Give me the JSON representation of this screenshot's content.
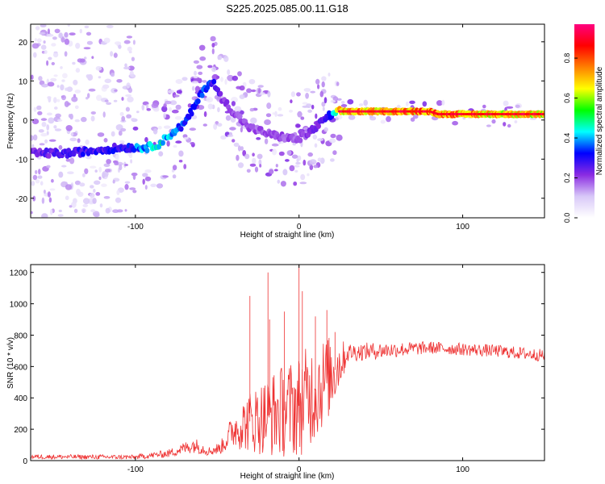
{
  "title": "S225.2025.085.00.11.G18",
  "colors": {
    "line": "#ee3333",
    "frame": "#000000",
    "colorbar_stops": [
      "#ffffff",
      "#d8c8f8",
      "#8a2be2",
      "#0000ff",
      "#00ffff",
      "#00ff00",
      "#ffff00",
      "#ff8000",
      "#ff0000",
      "#ff0080"
    ]
  },
  "chart_data": [
    {
      "type": "heatmap",
      "title": "S225.2025.085.00.11.G18",
      "xlabel": "Height of straight line (km)",
      "ylabel": "Frequency (Hz)",
      "xlim": [
        -164,
        150
      ],
      "ylim": [
        -25,
        24.5
      ],
      "xticks": [
        -100,
        0,
        100
      ],
      "yticks": [
        -20,
        -10,
        0,
        10,
        20
      ],
      "colorbar": {
        "label": "Normalized spectral amplitude",
        "range": [
          0,
          0.97
        ],
        "ticks": [
          "0.0",
          "0.2",
          "0.4",
          "0.6",
          "0.8"
        ],
        "tick_values": [
          0,
          0.2,
          0.4,
          0.6,
          0.8
        ]
      },
      "ridge": [
        {
          "x": -164,
          "y": -8.5,
          "a": 0.25
        },
        {
          "x": -140,
          "y": -8.5,
          "a": 0.3
        },
        {
          "x": -120,
          "y": -7.5,
          "a": 0.3
        },
        {
          "x": -105,
          "y": -7.0,
          "a": 0.32
        },
        {
          "x": -92,
          "y": -7.0,
          "a": 0.45
        },
        {
          "x": -85,
          "y": -6.0,
          "a": 0.5
        },
        {
          "x": -78,
          "y": -3.5,
          "a": 0.4
        },
        {
          "x": -70,
          "y": -1.0,
          "a": 0.35
        },
        {
          "x": -63,
          "y": 4.0,
          "a": 0.35
        },
        {
          "x": -58,
          "y": 8.0,
          "a": 0.38
        },
        {
          "x": -53,
          "y": 10.0,
          "a": 0.32
        },
        {
          "x": -48,
          "y": 6.0,
          "a": 0.25
        },
        {
          "x": -40,
          "y": 2.0,
          "a": 0.22
        },
        {
          "x": -30,
          "y": -2.0,
          "a": 0.2
        },
        {
          "x": -15,
          "y": -4.0,
          "a": 0.2
        },
        {
          "x": 0,
          "y": -5.0,
          "a": 0.2
        },
        {
          "x": 10,
          "y": -2.0,
          "a": 0.25
        },
        {
          "x": 18,
          "y": 1.0,
          "a": 0.3
        },
        {
          "x": 22,
          "y": 1.5,
          "a": 0.5
        },
        {
          "x": 25,
          "y": 2.2,
          "a": 0.75
        },
        {
          "x": 80,
          "y": 2.2,
          "a": 0.8
        },
        {
          "x": 85,
          "y": 1.5,
          "a": 0.8
        },
        {
          "x": 150,
          "y": 1.5,
          "a": 0.7
        }
      ]
    },
    {
      "type": "line",
      "xlabel": "Height of straight line (km)",
      "ylabel": "SNR (10 * v/v)",
      "xlim": [
        -164,
        150
      ],
      "ylim": [
        0,
        1250
      ],
      "xticks": [
        -100,
        0,
        100
      ],
      "yticks": [
        0,
        200,
        400,
        600,
        800,
        1000,
        1200
      ],
      "envelope": [
        {
          "x": -164,
          "mean": 25,
          "amp": 15
        },
        {
          "x": -100,
          "mean": 22,
          "amp": 15
        },
        {
          "x": -80,
          "mean": 45,
          "amp": 25
        },
        {
          "x": -64,
          "mean": 100,
          "amp": 50
        },
        {
          "x": -55,
          "mean": 60,
          "amp": 30
        },
        {
          "x": -48,
          "mean": 80,
          "amp": 40
        },
        {
          "x": -40,
          "mean": 200,
          "amp": 120
        },
        {
          "x": -30,
          "mean": 250,
          "amp": 200
        },
        {
          "x": -15,
          "mean": 300,
          "amp": 280
        },
        {
          "x": 0,
          "mean": 350,
          "amp": 330
        },
        {
          "x": 10,
          "mean": 450,
          "amp": 330
        },
        {
          "x": 20,
          "mean": 550,
          "amp": 250
        },
        {
          "x": 30,
          "mean": 690,
          "amp": 60
        },
        {
          "x": 80,
          "mean": 720,
          "amp": 40
        },
        {
          "x": 120,
          "mean": 700,
          "amp": 40
        },
        {
          "x": 150,
          "mean": 670,
          "amp": 40
        }
      ],
      "spikes": [
        {
          "x": -19,
          "y": 1200
        },
        {
          "x": -30,
          "y": 1050
        },
        {
          "x": 0,
          "y": 1250
        },
        {
          "x": 2,
          "y": 1080
        },
        {
          "x": -9,
          "y": 950
        },
        {
          "x": -18,
          "y": 900
        },
        {
          "x": 10,
          "y": 920
        },
        {
          "x": 17,
          "y": 960
        },
        {
          "x": 22,
          "y": 820
        }
      ]
    }
  ]
}
